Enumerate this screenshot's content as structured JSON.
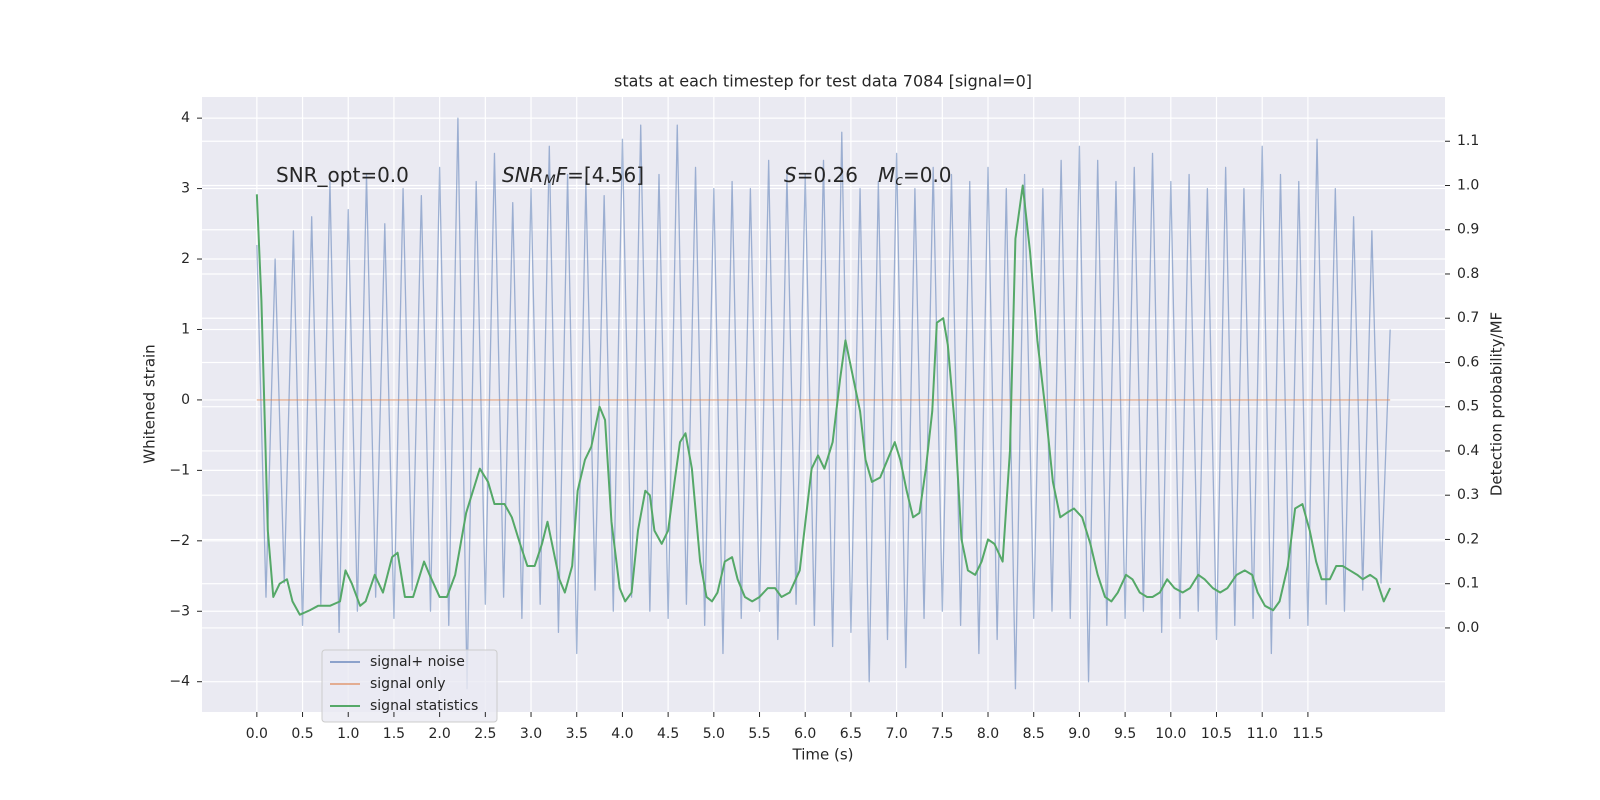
{
  "chart_data": {
    "type": "line",
    "title": "stats at each timestep for test data 7084 [signal=0]",
    "xlabel": "Time (s)",
    "ylabel": "Whitened strain",
    "y2label": "Detection probability/MF",
    "annotations": [
      [
        "SNR_opt=0.0"
      ],
      [
        "SNR",
        "M",
        "F",
        "=[4.56]"
      ],
      [
        "S",
        "=0.26"
      ],
      [
        "M",
        "c",
        "=0.0"
      ]
    ],
    "xlim": [
      -0.6,
      13.0
    ],
    "ylim": [
      -4.43,
      4.3
    ],
    "y2lim": [
      -0.19,
      1.2
    ],
    "grid": true,
    "legend": "lower left",
    "xticks": [
      {
        "value": 0,
        "label": "0.0"
      },
      0.5,
      {
        "value": 1,
        "label": "1.0"
      },
      1.5,
      {
        "value": 2,
        "label": "2.0"
      },
      2.5,
      {
        "value": 3,
        "label": "3.0"
      },
      3.5,
      {
        "value": 4,
        "label": "4.0"
      },
      4.5,
      {
        "value": 5,
        "label": "5.0"
      },
      5.5,
      {
        "value": 6,
        "label": "6.0"
      },
      6.5,
      {
        "value": 7,
        "label": "7.0"
      },
      7.5,
      {
        "value": 8,
        "label": "8.0"
      },
      8.5,
      {
        "value": 9,
        "label": "9.0"
      },
      9.5,
      {
        "value": 10,
        "label": "10.0"
      },
      10.5,
      {
        "value": 11,
        "label": "11.0"
      },
      11.5
    ],
    "yticks": [
      {
        "value": -4,
        "label": "−4"
      },
      {
        "value": -3,
        "label": "−3"
      },
      {
        "value": -2,
        "label": "−2"
      },
      {
        "value": -1,
        "label": "−1"
      },
      0,
      1,
      2,
      3,
      4
    ],
    "y2ticks": [
      {
        "value": 0,
        "label": "0.0"
      },
      0.1,
      0.2,
      0.3,
      0.4,
      0.5,
      0.6,
      0.7,
      0.8,
      0.9,
      {
        "value": 1,
        "label": "1.0"
      },
      1.1
    ],
    "series": [
      {
        "name": "signal+ noise",
        "color": "#4c72b0",
        "axis": "y",
        "x": [
          0,
          0.1,
          0.2,
          0.3,
          0.4,
          0.5,
          0.6,
          0.7,
          0.8,
          0.9,
          1,
          1.1,
          1.2,
          1.3,
          1.4,
          1.5,
          1.6,
          1.7,
          1.8,
          1.9,
          2,
          2.1,
          2.2,
          2.3,
          2.4,
          2.5,
          2.6,
          2.7,
          2.8,
          2.9,
          3,
          3.1,
          3.2,
          3.3,
          3.4,
          3.5,
          3.6,
          3.7,
          3.8,
          3.9,
          4,
          4.1,
          4.2,
          4.3,
          4.4,
          4.5,
          4.6,
          4.7,
          4.8,
          4.9,
          5,
          5.1,
          5.2,
          5.3,
          5.4,
          5.5,
          5.6,
          5.7,
          5.8,
          5.9,
          6,
          6.1,
          6.2,
          6.3,
          6.4,
          6.5,
          6.6,
          6.7,
          6.8,
          6.9,
          7,
          7.1,
          7.2,
          7.3,
          7.4,
          7.5,
          7.6,
          7.7,
          7.8,
          7.9,
          8,
          8.1,
          8.2,
          8.3,
          8.4,
          8.5,
          8.6,
          8.7,
          8.8,
          8.9,
          9,
          9.1,
          9.2,
          9.3,
          9.4,
          9.5,
          9.6,
          9.7,
          9.8,
          9.9,
          10,
          10.1,
          10.2,
          10.3,
          10.4,
          10.5,
          10.6,
          10.7,
          10.8,
          10.9,
          11,
          11.1,
          11.2,
          11.3,
          11.4,
          11.5,
          11.6,
          11.7,
          11.8,
          11.9,
          12,
          12.1,
          12.2,
          12.3,
          12.4
        ],
        "values": [
          2.2,
          -2.8,
          2.0,
          -2.6,
          2.4,
          -3.2,
          2.6,
          -2.9,
          3.1,
          -3.3,
          2.7,
          -3.0,
          3.2,
          -2.8,
          2.5,
          -3.1,
          3.0,
          -2.7,
          2.9,
          -3.0,
          3.3,
          -3.2,
          4.0,
          -4.1,
          3.1,
          -2.9,
          3.5,
          -2.8,
          2.8,
          -3.1,
          3.0,
          -2.9,
          3.6,
          -3.3,
          3.2,
          -3.6,
          3.1,
          -2.7,
          2.9,
          -3.0,
          3.7,
          -2.8,
          3.9,
          -3.0,
          3.2,
          -3.1,
          3.9,
          -2.9,
          3.3,
          -3.2,
          3.0,
          -3.6,
          3.1,
          -3.1,
          3.0,
          -3.0,
          3.4,
          -3.4,
          3.2,
          -2.9,
          3.2,
          -3.2,
          3.4,
          -3.5,
          3.8,
          -3.3,
          3.0,
          -4.0,
          3.1,
          -3.4,
          3.5,
          -3.8,
          3.0,
          -3.1,
          3.3,
          -3.0,
          3.2,
          -3.2,
          3.1,
          -3.6,
          3.3,
          -3.4,
          3.0,
          -4.1,
          3.2,
          -3.1,
          3.0,
          -3.0,
          3.4,
          -3.1,
          3.6,
          -4.0,
          3.4,
          -3.2,
          3.1,
          -3.1,
          3.3,
          -3.0,
          3.5,
          -3.3,
          3.1,
          -3.1,
          3.2,
          -3.0,
          3.0,
          -3.4,
          3.3,
          -3.2,
          3.0,
          -3.1,
          3.6,
          -3.6,
          3.2,
          -3.1,
          3.1,
          -3.2,
          3.7,
          -2.9,
          3.0,
          -3.0,
          2.6,
          -2.7,
          2.4,
          -2.6,
          1.0
        ]
      },
      {
        "name": "signal only",
        "color": "#dd8452",
        "axis": "y",
        "x": [
          0,
          12.4
        ],
        "values": [
          0,
          0
        ]
      },
      {
        "name": "signal statistics",
        "color": "#55a868",
        "axis": "y2",
        "x": [
          0,
          0.05,
          0.12,
          0.18,
          0.25,
          0.33,
          0.39,
          0.47,
          0.58,
          0.67,
          0.8,
          0.91,
          0.97,
          1.04,
          1.13,
          1.19,
          1.29,
          1.38,
          1.48,
          1.54,
          1.62,
          1.71,
          1.83,
          1.89,
          2,
          2.08,
          2.17,
          2.29,
          2.44,
          2.53,
          2.6,
          2.71,
          2.79,
          2.88,
          2.96,
          3.04,
          3.12,
          3.18,
          3.25,
          3.31,
          3.37,
          3.45,
          3.51,
          3.59,
          3.66,
          3.75,
          3.81,
          3.88,
          3.97,
          4.03,
          4.1,
          4.17,
          4.25,
          4.3,
          4.35,
          4.43,
          4.5,
          4.57,
          4.63,
          4.69,
          4.76,
          4.85,
          4.92,
          4.98,
          5.04,
          5.12,
          5.2,
          5.26,
          5.34,
          5.42,
          5.5,
          5.59,
          5.67,
          5.74,
          5.83,
          5.94,
          6.07,
          6.14,
          6.21,
          6.3,
          6.38,
          6.44,
          6.51,
          6.6,
          6.66,
          6.73,
          6.82,
          6.9,
          6.98,
          7.04,
          7.11,
          7.18,
          7.25,
          7.32,
          7.39,
          7.44,
          7.51,
          7.56,
          7.64,
          7.71,
          7.78,
          7.86,
          7.93,
          8,
          8.07,
          8.16,
          8.24,
          8.3,
          8.38,
          8.46,
          8.54,
          8.63,
          8.71,
          8.79,
          8.86,
          8.94,
          9.03,
          9.12,
          9.2,
          9.28,
          9.35,
          9.42,
          9.51,
          9.58,
          9.66,
          9.74,
          9.8,
          9.88,
          9.96,
          10.04,
          10.13,
          10.21,
          10.3,
          10.37,
          10.46,
          10.54,
          10.62,
          10.72,
          10.81,
          10.89,
          10.95,
          11.03,
          11.12,
          11.19,
          11.28,
          11.36,
          11.44,
          11.52,
          11.59,
          11.65,
          11.74,
          11.81,
          11.88,
          11.96,
          12.04,
          12.1,
          12.18,
          12.25,
          12.33,
          12.4
        ],
        "values": [
          0.98,
          0.74,
          0.22,
          0.07,
          0.1,
          0.11,
          0.06,
          0.03,
          0.04,
          0.05,
          0.05,
          0.06,
          0.13,
          0.1,
          0.05,
          0.06,
          0.12,
          0.08,
          0.16,
          0.17,
          0.07,
          0.07,
          0.15,
          0.12,
          0.07,
          0.07,
          0.12,
          0.26,
          0.36,
          0.33,
          0.28,
          0.28,
          0.25,
          0.19,
          0.14,
          0.14,
          0.19,
          0.24,
          0.17,
          0.11,
          0.08,
          0.14,
          0.31,
          0.38,
          0.41,
          0.5,
          0.47,
          0.24,
          0.09,
          0.06,
          0.08,
          0.22,
          0.31,
          0.3,
          0.22,
          0.19,
          0.22,
          0.33,
          0.42,
          0.44,
          0.36,
          0.15,
          0.07,
          0.06,
          0.08,
          0.15,
          0.16,
          0.11,
          0.07,
          0.06,
          0.07,
          0.09,
          0.09,
          0.07,
          0.08,
          0.13,
          0.36,
          0.39,
          0.36,
          0.42,
          0.56,
          0.65,
          0.58,
          0.49,
          0.38,
          0.33,
          0.34,
          0.38,
          0.42,
          0.38,
          0.31,
          0.25,
          0.26,
          0.36,
          0.49,
          0.69,
          0.7,
          0.64,
          0.45,
          0.2,
          0.13,
          0.12,
          0.15,
          0.2,
          0.19,
          0.15,
          0.4,
          0.88,
          1.0,
          0.85,
          0.65,
          0.49,
          0.33,
          0.25,
          0.26,
          0.27,
          0.25,
          0.19,
          0.12,
          0.07,
          0.06,
          0.08,
          0.12,
          0.11,
          0.08,
          0.07,
          0.07,
          0.08,
          0.11,
          0.09,
          0.08,
          0.09,
          0.12,
          0.11,
          0.09,
          0.08,
          0.09,
          0.12,
          0.13,
          0.12,
          0.08,
          0.05,
          0.04,
          0.06,
          0.14,
          0.27,
          0.28,
          0.22,
          0.15,
          0.11,
          0.11,
          0.14,
          0.14,
          0.13,
          0.12,
          0.11,
          0.12,
          0.11,
          0.06,
          0.09
        ]
      }
    ]
  }
}
